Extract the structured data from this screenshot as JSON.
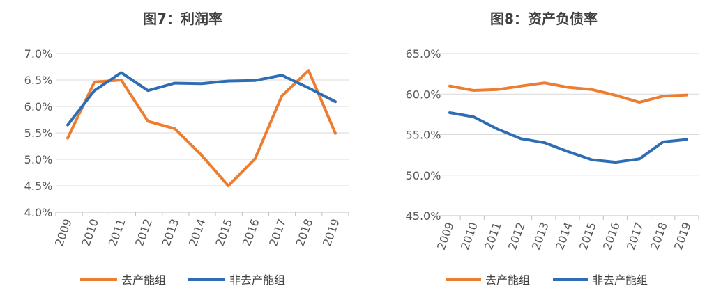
{
  "chart_data": [
    {
      "type": "line",
      "title": "图7：利润率",
      "categories": [
        "2009",
        "2010",
        "2011",
        "2012",
        "2013",
        "2014",
        "2015",
        "2016",
        "2017",
        "2018",
        "2019"
      ],
      "ylim": [
        0.04,
        0.07
      ],
      "yticks": [
        "7.0%",
        "6.5%",
        "6.0%",
        "5.5%",
        "5.0%",
        "4.5%",
        "4.0%"
      ],
      "grid": true,
      "legend_position": "bottom",
      "series": [
        {
          "name": "去产能组",
          "color": "#ED7D31",
          "values": [
            0.054,
            0.0646,
            0.065,
            0.0572,
            0.0558,
            0.0508,
            0.045,
            0.0501,
            0.062,
            0.0668,
            0.0549
          ]
        },
        {
          "name": "非去产能组",
          "color": "#2E6DB4",
          "values": [
            0.0565,
            0.063,
            0.0664,
            0.063,
            0.0644,
            0.0643,
            0.0648,
            0.0649,
            0.0659,
            0.0635,
            0.0609
          ]
        }
      ]
    },
    {
      "type": "line",
      "title": "图8：资产负债率",
      "categories": [
        "2009",
        "2010",
        "2011",
        "2012",
        "2013",
        "2014",
        "2015",
        "2016",
        "2017",
        "2018",
        "2019"
      ],
      "ylim": [
        0.45,
        0.65
      ],
      "yticks": [
        "65.0%",
        "60.0%",
        "55.0%",
        "50.0%",
        "45.0%"
      ],
      "grid": true,
      "legend_position": "bottom",
      "series": [
        {
          "name": "去产能组",
          "color": "#ED7D31",
          "values": [
            0.61,
            0.6045,
            0.6055,
            0.6098,
            0.6138,
            0.6083,
            0.6055,
            0.5985,
            0.5898,
            0.5975,
            0.5988
          ]
        },
        {
          "name": "非去产能组",
          "color": "#2E6DB4",
          "values": [
            0.577,
            0.572,
            0.557,
            0.545,
            0.54,
            0.529,
            0.519,
            0.516,
            0.52,
            0.541,
            0.544
          ]
        }
      ]
    }
  ]
}
